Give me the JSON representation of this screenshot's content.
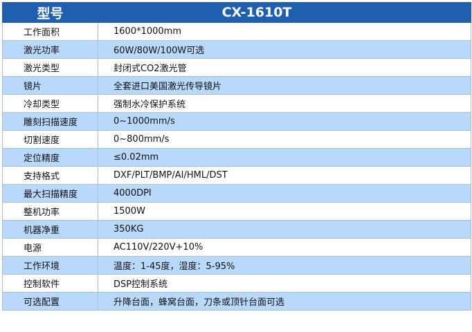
{
  "header": {
    "label": "型号",
    "model": "CX-1610T"
  },
  "colors": {
    "header": "#1f5fb0",
    "alt_row": "#b8d8fc"
  },
  "rows": [
    {
      "k": "工作面积",
      "v": "1600*1000mm"
    },
    {
      "k": "激光功率",
      "v": "60W/80W/100W可选"
    },
    {
      "k": "激光类型",
      "v": "封闭式CO2激光管"
    },
    {
      "k": "镜片",
      "v": "全套进口美国激光传导镜片"
    },
    {
      "k": "冷却类型",
      "v": "强制水冷保护系统"
    },
    {
      "k": "雕刻扫描速度",
      "v": "0~1000mm/s"
    },
    {
      "k": "切割速度",
      "v": "0~800mm/s"
    },
    {
      "k": "定位精度",
      "v": "≤0.02mm"
    },
    {
      "k": "支持格式",
      "v": "DXF/PLT/BMP/AI/HML/DST"
    },
    {
      "k": "最大扫描精度",
      "v": "4000DPI"
    },
    {
      "k": "整机功率",
      "v": "1500W"
    },
    {
      "k": "机器净重",
      "v": "350KG"
    },
    {
      "k": "电源",
      "v": "AC110V/220V+10%"
    },
    {
      "k": "工作环境",
      "v": "温度：1-45度，湿度：5-95%"
    },
    {
      "k": "控制软件",
      "v": "DSP控制系统"
    },
    {
      "k": "可选配置",
      "v": "升降台面，蜂窝台面，刀条或顶针台面可选"
    }
  ]
}
